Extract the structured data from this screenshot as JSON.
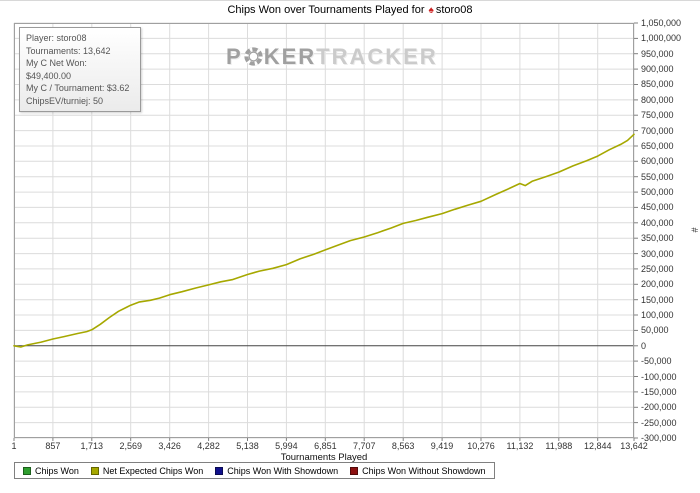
{
  "title": {
    "prefix": "Chips Won over Tournaments Played for",
    "icon": "pokerstars-spade",
    "player": "storo08"
  },
  "info_box": {
    "lines": [
      "Player: storo08",
      "Tournaments: 13,642",
      "My C Net Won: $49,400.00",
      "My C / Tournament: $3.62",
      "ChipsEV/turniej: 50"
    ]
  },
  "watermark": {
    "poker_p": "P",
    "poker_ker": "KER",
    "tracker": "TRACKER",
    "chip_icon": "poker-chip-icon"
  },
  "chart_data": {
    "type": "line",
    "title": "Chips Won over Tournaments Played for storo08",
    "x_axis_title": "Tournaments Played",
    "y_axis_title": "#",
    "xlim": [
      1,
      13642
    ],
    "ylim": [
      -300000,
      1050000
    ],
    "y_tick_step": 50000,
    "grid": true,
    "legend_position": "bottom",
    "x_ticks": [
      1,
      857,
      1713,
      2569,
      3426,
      4282,
      5138,
      5994,
      6851,
      7707,
      8563,
      9419,
      10276,
      11132,
      11988,
      12844,
      13642
    ],
    "x_tick_labels": [
      "1",
      "857",
      "1,713",
      "2,569",
      "3,426",
      "4,282",
      "5,138",
      "5,994",
      "6,851",
      "7,707",
      "8,563",
      "9,419",
      "10,276",
      "11,132",
      "11,988",
      "12,844",
      "13,642"
    ],
    "y_tick_labels": [
      "1,050,000",
      "1,000,000",
      "950,000",
      "900,000",
      "850,000",
      "800,000",
      "750,000",
      "700,000",
      "650,000",
      "600,000",
      "550,000",
      "500,000",
      "450,000",
      "400,000",
      "350,000",
      "300,000",
      "250,000",
      "200,000",
      "150,000",
      "100,000",
      "50,000",
      "0",
      "-50,000",
      "-100,000",
      "-150,000",
      "-200,000",
      "-250,000",
      "-300,000"
    ],
    "series": [
      {
        "name": "Net Expected Chips Won",
        "color": "#a6a800",
        "points": [
          [
            1,
            0
          ],
          [
            150,
            -4000
          ],
          [
            300,
            3000
          ],
          [
            600,
            12000
          ],
          [
            857,
            22000
          ],
          [
            1100,
            30000
          ],
          [
            1400,
            40000
          ],
          [
            1600,
            46000
          ],
          [
            1713,
            52000
          ],
          [
            1900,
            70000
          ],
          [
            2100,
            92000
          ],
          [
            2300,
            112000
          ],
          [
            2569,
            132000
          ],
          [
            2750,
            142000
          ],
          [
            3000,
            148000
          ],
          [
            3200,
            155000
          ],
          [
            3426,
            166000
          ],
          [
            3700,
            176000
          ],
          [
            4000,
            188000
          ],
          [
            4282,
            198000
          ],
          [
            4550,
            208000
          ],
          [
            4800,
            215000
          ],
          [
            5138,
            232000
          ],
          [
            5400,
            243000
          ],
          [
            5700,
            252000
          ],
          [
            5994,
            264000
          ],
          [
            6300,
            283000
          ],
          [
            6600,
            298000
          ],
          [
            6851,
            312000
          ],
          [
            7100,
            326000
          ],
          [
            7400,
            342000
          ],
          [
            7707,
            354000
          ],
          [
            8000,
            368000
          ],
          [
            8300,
            383000
          ],
          [
            8563,
            398000
          ],
          [
            8850,
            408000
          ],
          [
            9100,
            418000
          ],
          [
            9419,
            430000
          ],
          [
            9700,
            444000
          ],
          [
            10000,
            458000
          ],
          [
            10276,
            470000
          ],
          [
            10600,
            492000
          ],
          [
            10900,
            512000
          ],
          [
            11132,
            528000
          ],
          [
            11250,
            521000
          ],
          [
            11400,
            535000
          ],
          [
            11700,
            550000
          ],
          [
            11988,
            565000
          ],
          [
            12300,
            585000
          ],
          [
            12600,
            602000
          ],
          [
            12844,
            617000
          ],
          [
            13100,
            638000
          ],
          [
            13350,
            655000
          ],
          [
            13500,
            668000
          ],
          [
            13642,
            688000
          ]
        ]
      }
    ]
  },
  "legend": {
    "items": [
      {
        "label": "Chips Won",
        "color": "#2f9e2f",
        "border": "#1c5f1c"
      },
      {
        "label": "Net Expected Chips Won",
        "color": "#a6a800",
        "border": "#646600"
      },
      {
        "label": "Chips Won With Showdown",
        "color": "#10108c",
        "border": "#0a0a52"
      },
      {
        "label": "Chips Won Without Showdown",
        "color": "#8c1010",
        "border": "#520a0a"
      }
    ]
  }
}
